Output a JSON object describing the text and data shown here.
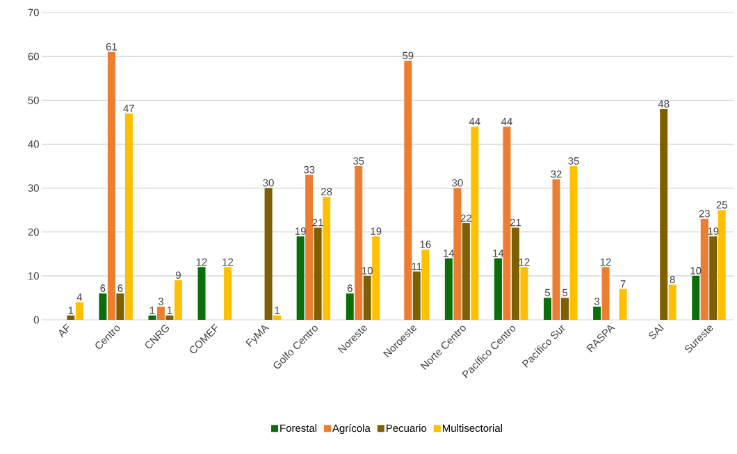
{
  "chart_data": {
    "type": "bar",
    "categories": [
      "AF",
      "Centro",
      "CNRG",
      "COMEF",
      "FyMA",
      "Golfo Centro",
      "Noreste",
      "Noroeste",
      "Norte Centro",
      "Pacífico Centro",
      "Pacífico Sur",
      "RASPA",
      "SAI",
      "Sureste"
    ],
    "series": [
      {
        "name": "Forestal",
        "color": "#0b6e0b",
        "values": [
          null,
          6,
          1,
          12,
          null,
          19,
          6,
          null,
          14,
          14,
          5,
          3,
          null,
          10
        ]
      },
      {
        "name": "Agrícola",
        "color": "#ed7d31",
        "values": [
          null,
          61,
          3,
          null,
          null,
          33,
          35,
          59,
          30,
          44,
          32,
          12,
          null,
          23
        ]
      },
      {
        "name": "Pecuario",
        "color": "#7f6000",
        "values": [
          1,
          6,
          1,
          null,
          30,
          21,
          10,
          11,
          22,
          21,
          5,
          null,
          48,
          19
        ]
      },
      {
        "name": "Multisectorial",
        "color": "#ffc000",
        "values": [
          4,
          47,
          9,
          12,
          1,
          28,
          19,
          16,
          44,
          12,
          35,
          7,
          8,
          25
        ]
      }
    ],
    "ylim": [
      0,
      70
    ],
    "yticks": [
      0,
      10,
      20,
      30,
      40,
      50,
      60,
      70
    ],
    "grid": "y",
    "legend": "bottom",
    "data_labels": true
  }
}
